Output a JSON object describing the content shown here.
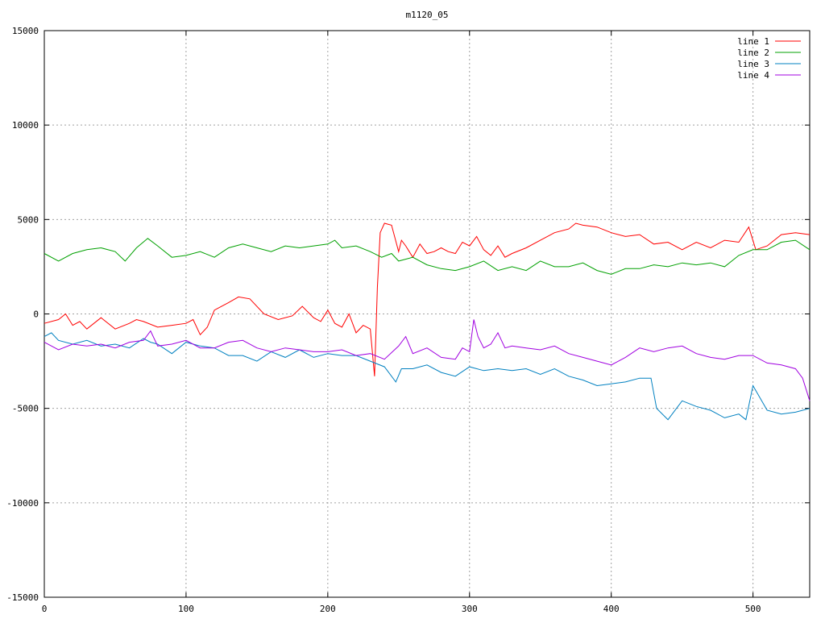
{
  "chart_data": {
    "type": "line",
    "title": "m1120_05",
    "xlabel": "",
    "ylabel": "",
    "xlim": [
      0,
      540
    ],
    "ylim": [
      -15000,
      15000
    ],
    "xticks": [
      0,
      100,
      200,
      300,
      400,
      500
    ],
    "yticks": [
      -15000,
      -10000,
      -5000,
      0,
      5000,
      10000,
      15000
    ],
    "grid": true,
    "legend_position": "top-right",
    "series": [
      {
        "name": "line 1",
        "color": "#ff0000",
        "x": [
          0,
          10,
          15,
          20,
          25,
          30,
          40,
          50,
          60,
          65,
          70,
          80,
          90,
          100,
          105,
          110,
          115,
          120,
          130,
          137,
          145,
          155,
          165,
          175,
          182,
          190,
          195,
          200,
          205,
          210,
          215,
          220,
          225,
          230,
          233,
          235,
          237,
          240,
          245,
          250,
          252,
          255,
          260,
          265,
          270,
          275,
          280,
          285,
          290,
          295,
          300,
          305,
          310,
          315,
          320,
          325,
          330,
          340,
          350,
          360,
          370,
          375,
          380,
          390,
          400,
          410,
          420,
          430,
          440,
          450,
          460,
          470,
          480,
          490,
          497,
          502,
          510,
          520,
          530,
          540
        ],
        "y": [
          -500,
          -300,
          0,
          -600,
          -400,
          -800,
          -200,
          -800,
          -500,
          -300,
          -400,
          -700,
          -600,
          -500,
          -300,
          -1100,
          -700,
          200,
          600,
          900,
          800,
          0,
          -300,
          -100,
          400,
          -200,
          -400,
          200,
          -500,
          -700,
          0,
          -1000,
          -600,
          -800,
          -3300,
          1400,
          4300,
          4800,
          4700,
          3300,
          3900,
          3600,
          3000,
          3700,
          3200,
          3300,
          3500,
          3300,
          3200,
          3800,
          3600,
          4100,
          3400,
          3100,
          3600,
          3000,
          3200,
          3500,
          3900,
          4300,
          4500,
          4800,
          4700,
          4600,
          4300,
          4100,
          4200,
          3700,
          3800,
          3400,
          3800,
          3500,
          3900,
          3800,
          4600,
          3400,
          3600,
          4200,
          4300,
          4200
        ]
      },
      {
        "name": "line 2",
        "color": "#00a000",
        "x": [
          0,
          10,
          20,
          30,
          40,
          50,
          57,
          65,
          73,
          80,
          90,
          100,
          110,
          120,
          130,
          140,
          150,
          160,
          170,
          180,
          190,
          200,
          205,
          210,
          220,
          230,
          238,
          245,
          250,
          260,
          270,
          280,
          290,
          300,
          310,
          320,
          330,
          340,
          350,
          360,
          370,
          380,
          390,
          400,
          410,
          420,
          430,
          440,
          450,
          460,
          470,
          480,
          490,
          500,
          510,
          520,
          530,
          540
        ],
        "y": [
          3200,
          2800,
          3200,
          3400,
          3500,
          3300,
          2800,
          3500,
          4000,
          3600,
          3000,
          3100,
          3300,
          3000,
          3500,
          3700,
          3500,
          3300,
          3600,
          3500,
          3600,
          3700,
          3900,
          3500,
          3600,
          3300,
          3000,
          3200,
          2800,
          3000,
          2600,
          2400,
          2300,
          2500,
          2800,
          2300,
          2500,
          2300,
          2800,
          2500,
          2500,
          2700,
          2300,
          2100,
          2400,
          2400,
          2600,
          2500,
          2700,
          2600,
          2700,
          2500,
          3100,
          3400,
          3400,
          3800,
          3900,
          3400
        ]
      },
      {
        "name": "line 3",
        "color": "#0080c0",
        "x": [
          0,
          5,
          10,
          20,
          30,
          40,
          50,
          60,
          70,
          75,
          80,
          90,
          100,
          110,
          120,
          130,
          140,
          150,
          160,
          170,
          180,
          190,
          200,
          210,
          220,
          230,
          240,
          248,
          252,
          260,
          270,
          280,
          290,
          300,
          310,
          320,
          330,
          340,
          350,
          360,
          370,
          380,
          390,
          400,
          410,
          420,
          428,
          432,
          440,
          450,
          460,
          470,
          480,
          490,
          495,
          500,
          510,
          520,
          530,
          540
        ],
        "y": [
          -1200,
          -1000,
          -1400,
          -1600,
          -1400,
          -1700,
          -1600,
          -1800,
          -1300,
          -1500,
          -1600,
          -2100,
          -1500,
          -1700,
          -1800,
          -2200,
          -2200,
          -2500,
          -2000,
          -2300,
          -1900,
          -2300,
          -2100,
          -2200,
          -2200,
          -2500,
          -2800,
          -3600,
          -2900,
          -2900,
          -2700,
          -3100,
          -3300,
          -2800,
          -3000,
          -2900,
          -3000,
          -2900,
          -3200,
          -2900,
          -3300,
          -3500,
          -3800,
          -3700,
          -3600,
          -3400,
          -3400,
          -5000,
          -5600,
          -4600,
          -4900,
          -5100,
          -5500,
          -5300,
          -5600,
          -3800,
          -5100,
          -5300,
          -5200,
          -5000
        ]
      },
      {
        "name": "line 4",
        "color": "#a000e0",
        "x": [
          0,
          10,
          20,
          30,
          40,
          50,
          60,
          70,
          75,
          80,
          90,
          100,
          110,
          120,
          130,
          140,
          150,
          160,
          170,
          180,
          190,
          200,
          210,
          220,
          230,
          240,
          250,
          255,
          260,
          270,
          280,
          290,
          295,
          300,
          303,
          306,
          310,
          315,
          320,
          325,
          330,
          340,
          350,
          360,
          370,
          380,
          390,
          400,
          410,
          420,
          430,
          440,
          450,
          460,
          470,
          480,
          490,
          500,
          510,
          520,
          530,
          535,
          540
        ],
        "y": [
          -1500,
          -1900,
          -1600,
          -1700,
          -1600,
          -1800,
          -1500,
          -1400,
          -900,
          -1700,
          -1600,
          -1400,
          -1800,
          -1800,
          -1500,
          -1400,
          -1800,
          -2000,
          -1800,
          -1900,
          -2000,
          -2000,
          -1900,
          -2200,
          -2100,
          -2400,
          -1700,
          -1200,
          -2100,
          -1800,
          -2300,
          -2400,
          -1800,
          -2000,
          -300,
          -1200,
          -1800,
          -1600,
          -1000,
          -1800,
          -1700,
          -1800,
          -1900,
          -1700,
          -2100,
          -2300,
          -2500,
          -2700,
          -2300,
          -1800,
          -2000,
          -1800,
          -1700,
          -2100,
          -2300,
          -2400,
          -2200,
          -2200,
          -2600,
          -2700,
          -2900,
          -3400,
          -4600
        ]
      }
    ]
  }
}
